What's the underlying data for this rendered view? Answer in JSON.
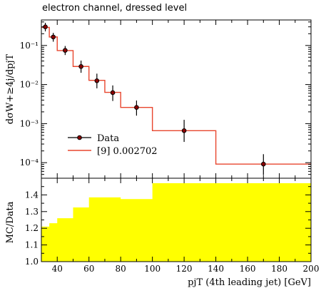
{
  "title": "electron channel, dressed level",
  "chart_data": [
    {
      "type": "line",
      "panel": "main",
      "ylabel": "dσW+≥4j/dpjT",
      "yscale": "log",
      "ylim": [
        4e-05,
        0.45
      ],
      "xlim": [
        30,
        200
      ],
      "y_tick_labels": [
        "10⁻¹",
        "10⁻²",
        "10⁻³",
        "10⁻⁴"
      ],
      "y_tick_values": [
        0.1,
        0.01,
        0.001,
        0.0001
      ],
      "legend_position": "bottom-left",
      "series": [
        {
          "name": "Data",
          "style": "points-with-errorbars",
          "color": "#000000",
          "marker_color": "#8b0000",
          "x": [
            32.5,
            37.5,
            45,
            55,
            65,
            75,
            90,
            120,
            170
          ],
          "y": [
            0.3,
            0.165,
            0.075,
            0.029,
            0.0125,
            0.0062,
            0.0026,
            0.00066,
            9.2e-05
          ],
          "y_low": [
            0.23,
            0.125,
            0.057,
            0.02,
            0.008,
            0.0038,
            0.0016,
            0.00034,
            4.8e-05
          ],
          "y_high": [
            0.38,
            0.21,
            0.097,
            0.041,
            0.019,
            0.0095,
            0.0039,
            0.00125,
            0.000165
          ]
        },
        {
          "name": "[9] 0.002702",
          "style": "step",
          "color": "#e8462e",
          "edges": [
            30,
            35,
            40,
            50,
            60,
            70,
            80,
            100,
            140,
            200
          ],
          "values": [
            0.29,
            0.165,
            0.074,
            0.029,
            0.0128,
            0.0063,
            0.0026,
            0.00066,
            9.2e-05
          ]
        }
      ]
    },
    {
      "type": "area",
      "panel": "ratio",
      "ylabel": "MC/Data",
      "xlabel": "pjT (4th leading jet) [GeV]",
      "xlim": [
        30,
        200
      ],
      "ylim": [
        1.0,
        1.5
      ],
      "x_tick_labels": [
        "40",
        "60",
        "80",
        "100",
        "120",
        "140",
        "160",
        "180",
        "200"
      ],
      "x_tick_values": [
        40,
        60,
        80,
        100,
        120,
        140,
        160,
        180,
        200
      ],
      "y_tick_labels": [
        "1.0",
        "1.1",
        "1.2",
        "1.3",
        "1.4"
      ],
      "y_tick_values": [
        1.0,
        1.1,
        1.2,
        1.3,
        1.4
      ],
      "fill_color": "#ffff00",
      "edges": [
        30,
        35,
        40,
        50,
        60,
        70,
        80,
        100,
        140,
        200
      ],
      "values": [
        1.21,
        1.23,
        1.26,
        1.325,
        1.385,
        1.385,
        1.375,
        1.47,
        1.47
      ]
    }
  ]
}
